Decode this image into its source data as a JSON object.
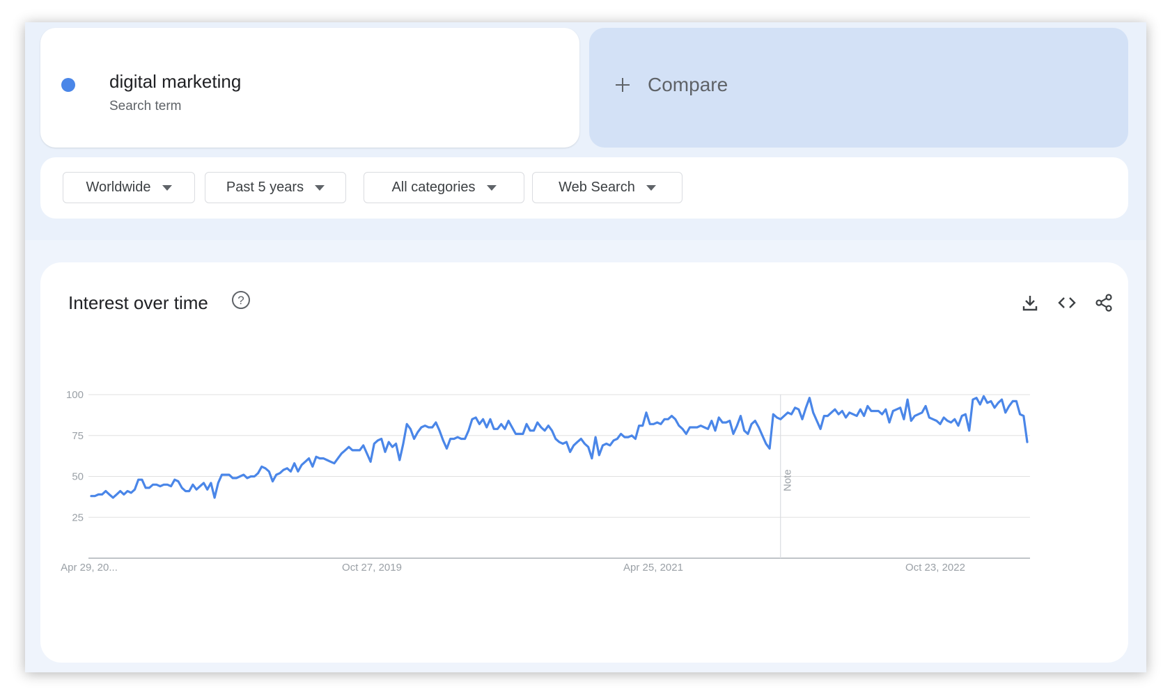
{
  "search_term": {
    "name": "digital marketing",
    "subtitle": "Search term",
    "color": "#4a86e8"
  },
  "compare": {
    "label": "Compare"
  },
  "filters": [
    {
      "label": "Worldwide"
    },
    {
      "label": "Past 5 years"
    },
    {
      "label": "All categories"
    },
    {
      "label": "Web Search"
    }
  ],
  "chart": {
    "title": "Interest over time",
    "actions": [
      "download-icon",
      "embed-code-icon",
      "share-icon"
    ],
    "note_label": "Note"
  },
  "chart_data": {
    "type": "line",
    "ylim": [
      0,
      100
    ],
    "yticks": [
      25,
      50,
      75,
      100
    ],
    "xtick_labels": [
      "Apr 29, 20...",
      "Oct 27, 2019",
      "Apr 25, 2021",
      "Oct 23, 2022"
    ],
    "grid": true,
    "series": [
      {
        "color": "#4a86e8",
        "values": [
          38,
          38,
          39,
          39,
          41,
          39,
          37,
          39,
          41,
          39,
          41,
          40,
          42,
          48,
          48,
          43,
          43,
          45,
          45,
          44,
          45,
          45,
          44,
          48,
          47,
          43,
          41,
          41,
          45,
          42,
          44,
          46,
          42,
          46,
          37,
          46,
          51,
          51,
          51,
          49,
          49,
          50,
          51,
          49,
          50,
          50,
          52,
          56,
          55,
          53,
          47,
          51,
          52,
          54,
          55,
          53,
          58,
          53,
          57,
          59,
          61,
          56,
          62,
          61,
          61,
          60,
          59,
          58,
          61,
          64,
          66,
          68,
          66,
          66,
          66,
          69,
          64,
          59,
          70,
          72,
          73,
          65,
          71,
          68,
          70,
          60,
          70,
          82,
          79,
          73,
          77,
          80,
          81,
          80,
          80,
          83,
          78,
          72,
          67,
          73,
          73,
          74,
          73,
          73,
          78,
          85,
          86,
          82,
          85,
          80,
          85,
          79,
          79,
          82,
          79,
          84,
          80,
          76,
          76,
          76,
          82,
          78,
          78,
          83,
          80,
          78,
          81,
          78,
          73,
          71,
          70,
          71,
          65,
          69,
          71,
          73,
          70,
          68,
          61,
          74,
          63,
          69,
          70,
          69,
          72,
          73,
          76,
          74,
          74,
          75,
          73,
          81,
          81,
          89,
          82,
          82,
          83,
          82,
          85,
          85,
          87,
          85,
          81,
          79,
          76,
          80,
          80,
          80,
          81,
          80,
          79,
          84,
          78,
          86,
          83,
          83,
          84,
          76,
          81,
          87,
          78,
          76,
          82,
          84,
          80,
          75,
          70,
          67,
          88,
          86,
          85,
          87,
          89,
          88,
          92,
          91,
          85,
          92,
          98,
          89,
          84,
          79,
          87,
          87,
          89,
          91,
          88,
          90,
          86,
          89,
          88,
          87,
          91,
          87,
          93,
          90,
          90,
          90,
          88,
          91,
          83,
          90,
          91,
          92,
          85,
          97,
          84,
          87,
          88,
          89,
          93,
          86,
          85,
          84,
          82,
          86,
          84,
          83,
          85,
          81,
          87,
          88,
          78,
          97,
          98,
          94,
          99,
          95,
          96,
          92,
          95,
          97,
          89,
          93,
          96,
          96,
          88,
          87,
          71
        ]
      }
    ],
    "note_x_fraction": 0.735
  }
}
